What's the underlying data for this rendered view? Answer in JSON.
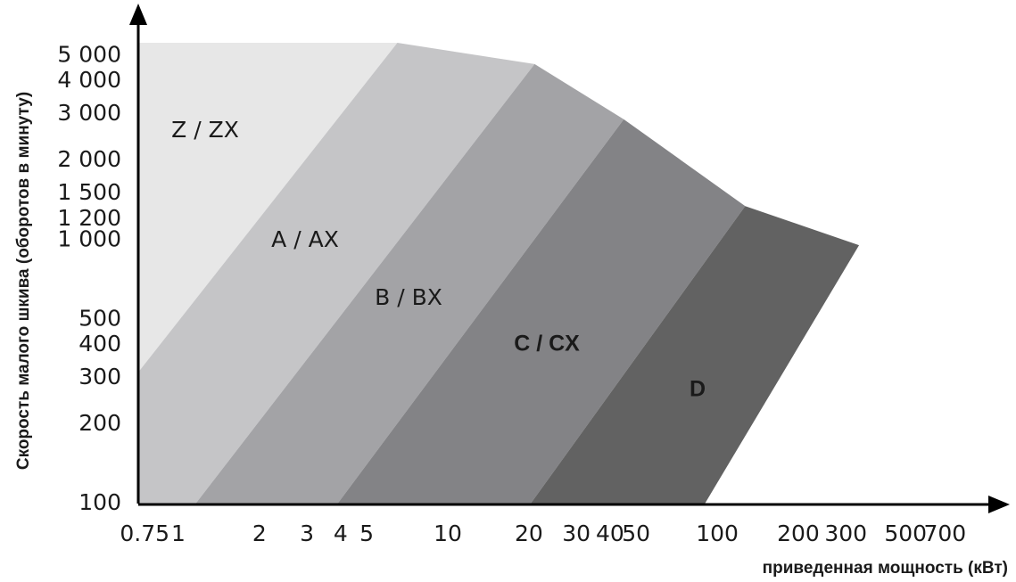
{
  "chart_data": {
    "type": "region",
    "x_label": "приведенная мощность (кВт)",
    "y_label": "Скорость малого шкива (оборотов в минуту)",
    "log_x": true,
    "log_y": true,
    "xlim": [
      0.71,
      1070
    ],
    "ylim": [
      100,
      5600
    ],
    "xticks": [
      0.75,
      1,
      2,
      3,
      4,
      5,
      10,
      20,
      30,
      40,
      50,
      100,
      200,
      300,
      500,
      700
    ],
    "yticks": [
      100,
      200,
      300,
      400,
      500,
      {
        "value": 1000,
        "label": "1 000"
      },
      {
        "value": 1200,
        "label": "1 200"
      },
      {
        "value": 1500,
        "label": "1 500"
      },
      {
        "value": 2000,
        "label": "2 000"
      },
      {
        "value": 3000,
        "label": "3 000"
      },
      {
        "value": 4000,
        "label": "4 000"
      },
      {
        "value": 5000,
        "label": "5 000"
      }
    ],
    "series": [
      {
        "name": "Z / ZX",
        "color": "#e7e7e7",
        "x": [
          0.71,
          6.5,
          0.71
        ],
        "values": [
          5600,
          5600,
          315
        ]
      },
      {
        "name": "A / AX",
        "color": "#c5c5c7",
        "x": [
          6.5,
          21,
          1.16,
          0.71,
          0.71
        ],
        "values": [
          5600,
          4650,
          100,
          100,
          315
        ]
      },
      {
        "name": "B / BX",
        "color": "#a3a3a6",
        "x": [
          21,
          45,
          3.9,
          1.16
        ],
        "values": [
          4650,
          2870,
          100,
          100
        ]
      },
      {
        "name": "C / CX",
        "color": "#838386",
        "x": [
          45,
          127,
          20.3,
          3.9
        ],
        "values": [
          2870,
          1345,
          100,
          100
        ]
      },
      {
        "name": "D",
        "color": "#626262",
        "x": [
          127,
          336,
          90,
          20.3
        ],
        "values": [
          1345,
          955,
          100,
          100
        ]
      }
    ]
  }
}
